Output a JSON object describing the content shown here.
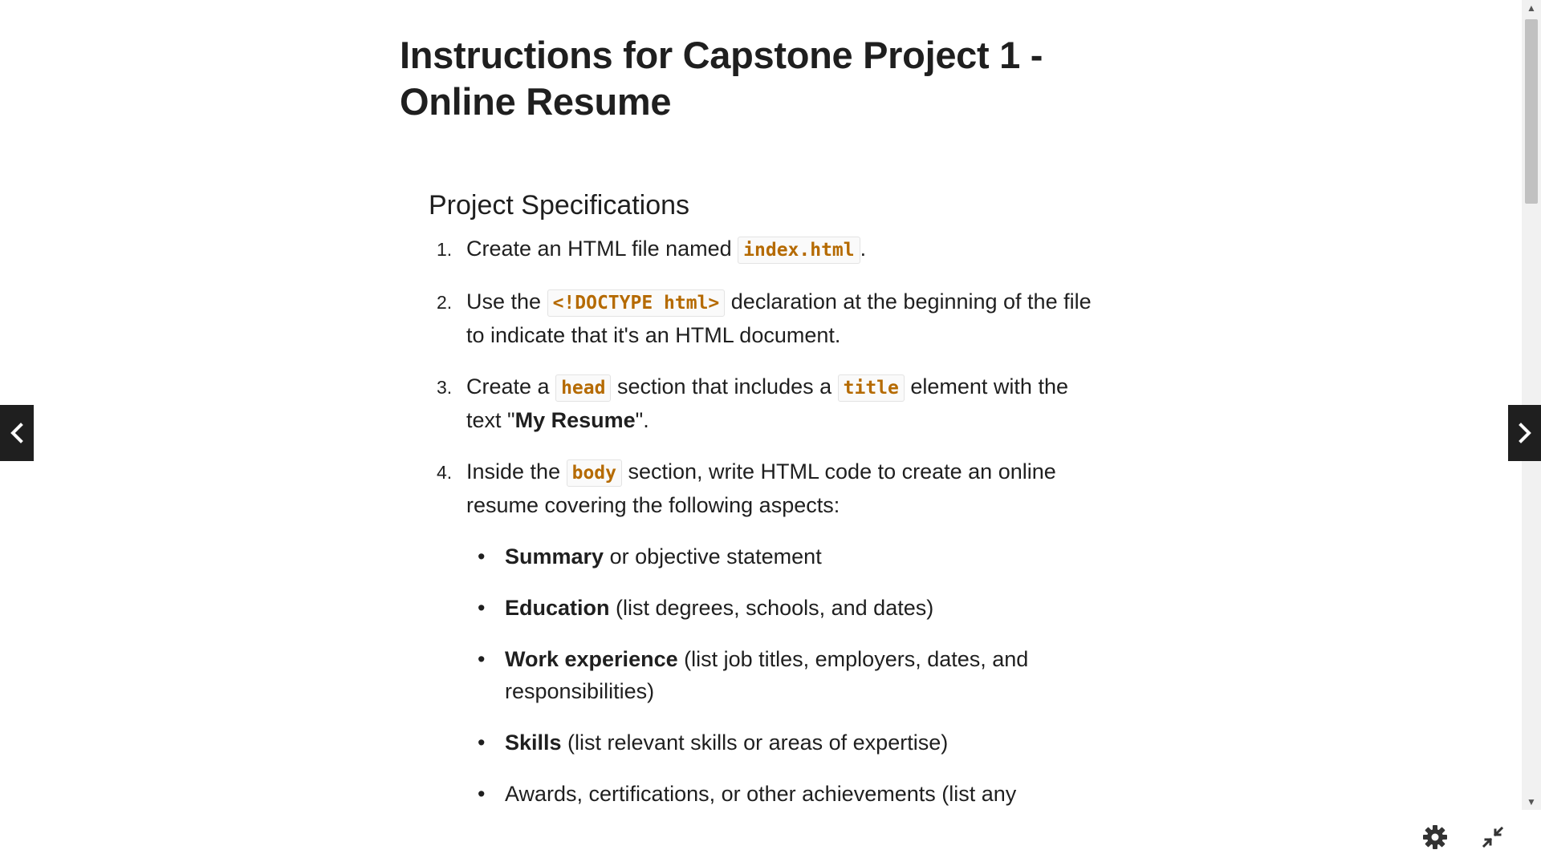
{
  "page": {
    "title": "Instructions for Capstone Project 1 - Online Resume"
  },
  "spec": {
    "heading": "Project Specifications",
    "steps": [
      {
        "number": "1.",
        "text_before": "Create an HTML file named ",
        "code": "index.html",
        "text_after": "."
      },
      {
        "number": "2.",
        "text_before": "Use the ",
        "code": "<!DOCTYPE html>",
        "text_after": " declaration at the beginning of the file to indicate that it's an HTML document."
      },
      {
        "number": "3.",
        "text_before": "Create a ",
        "code1": "head",
        "text_middle": " section that includes a ",
        "code2": "title",
        "text_middle2": " element with the text \"",
        "bold": "My Resume",
        "text_after": "\"."
      },
      {
        "number": "4.",
        "text_before": "Inside the ",
        "code": "body",
        "text_after": " section, write HTML code to create an online resume covering the following aspects:"
      }
    ],
    "aspects": [
      {
        "bold": "Summary",
        "text": " or objective statement"
      },
      {
        "bold": "Education",
        "text": " (list degrees, schools, and dates)"
      },
      {
        "bold": "Work experience",
        "text": " (list job titles, employers, dates, and responsibilities)"
      },
      {
        "bold": "Skills",
        "text": " (list relevant skills or areas of expertise)"
      },
      {
        "bold": "",
        "text": "Awards, certifications, or other achievements (list any"
      }
    ]
  },
  "icons": {
    "prev": "chevron-left-icon",
    "next": "chevron-right-icon",
    "settings": "gear-icon",
    "collapse": "collapse-icon"
  },
  "colors": {
    "code_text": "#b56a00",
    "nav_button_bg": "#1f1f1f",
    "text": "#1f1f1f"
  }
}
